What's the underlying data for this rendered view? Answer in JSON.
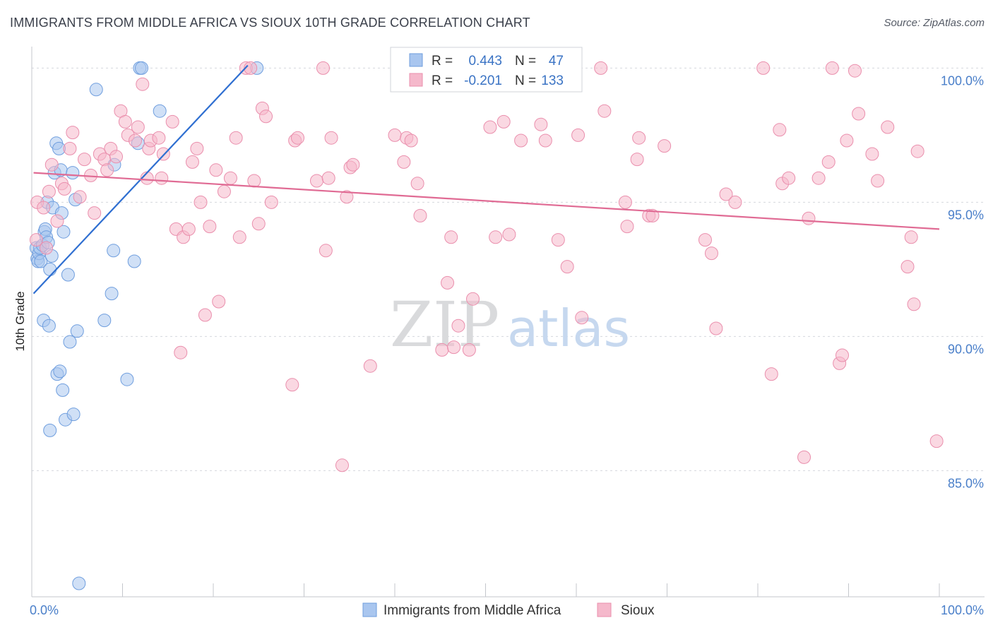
{
  "title": "IMMIGRANTS FROM MIDDLE AFRICA VS SIOUX 10TH GRADE CORRELATION CHART",
  "source": "Source: ZipAtlas.com",
  "watermark": {
    "zip": "ZIP",
    "atlas": "atlas"
  },
  "chart_data": {
    "type": "scatter",
    "title": "IMMIGRANTS FROM MIDDLE AFRICA VS SIOUX 10TH GRADE CORRELATION CHART",
    "xlabel": "",
    "ylabel": "10th Grade",
    "xlim": [
      0,
      100
    ],
    "ylim": [
      80.3,
      100.8
    ],
    "x_tick_labels": [
      {
        "value": 0,
        "label": "0.0%"
      },
      {
        "value": 100,
        "label": "100.0%"
      }
    ],
    "y_ticks": [
      {
        "value": 100,
        "label": "100.0%"
      },
      {
        "value": 95,
        "label": "95.0%"
      },
      {
        "value": 90,
        "label": "90.0%"
      },
      {
        "value": 85,
        "label": "85.0%"
      }
    ],
    "x_minor_ticks": [
      10,
      20,
      30,
      40,
      50,
      60,
      70,
      80,
      90,
      100
    ],
    "legend_box": [
      {
        "series": "Immigrants from Middle Africa",
        "r_label": "R =",
        "r_value": "0.443",
        "n_label": "N =",
        "n_value": "47",
        "color": "#a9c6ef"
      },
      {
        "series": "Sioux",
        "r_label": "R =",
        "r_value": "-0.201",
        "n_label": "N =",
        "n_value": "133",
        "color": "#f5b8cb"
      }
    ],
    "series": [
      {
        "name": "Immigrants from Middle Africa",
        "fill": "#a9c6ef",
        "stroke": "#6f9ede",
        "trend": {
          "x": [
            0.2,
            23.8
          ],
          "y": [
            91.6,
            100.1
          ],
          "color": "#2f6fd1"
        },
        "points": [
          [
            0.5,
            93.3
          ],
          [
            0.6,
            92.9
          ],
          [
            0.7,
            92.8
          ],
          [
            0.8,
            93.1
          ],
          [
            0.9,
            93.3
          ],
          [
            1.0,
            92.8
          ],
          [
            1.2,
            93.4
          ],
          [
            1.4,
            93.9
          ],
          [
            1.5,
            94.0
          ],
          [
            1.6,
            93.7
          ],
          [
            1.7,
            95.0
          ],
          [
            1.8,
            93.5
          ],
          [
            2.0,
            92.5
          ],
          [
            2.2,
            93.0
          ],
          [
            2.3,
            94.8
          ],
          [
            2.5,
            96.1
          ],
          [
            2.7,
            97.2
          ],
          [
            3.0,
            97.0
          ],
          [
            3.2,
            96.2
          ],
          [
            3.3,
            94.6
          ],
          [
            3.5,
            93.9
          ],
          [
            4.0,
            92.3
          ],
          [
            4.5,
            96.1
          ],
          [
            4.8,
            95.1
          ],
          [
            1.3,
            90.6
          ],
          [
            1.9,
            90.4
          ],
          [
            2.8,
            88.6
          ],
          [
            3.1,
            88.7
          ],
          [
            3.4,
            88.0
          ],
          [
            3.7,
            86.9
          ],
          [
            4.2,
            89.8
          ],
          [
            4.6,
            87.1
          ],
          [
            2.0,
            86.5
          ],
          [
            5.0,
            90.2
          ],
          [
            5.2,
            80.8
          ],
          [
            7.1,
            99.2
          ],
          [
            8.0,
            90.6
          ],
          [
            8.8,
            91.6
          ],
          [
            9.0,
            93.2
          ],
          [
            9.1,
            96.4
          ],
          [
            11.3,
            92.8
          ],
          [
            11.7,
            97.2
          ],
          [
            11.9,
            100.0
          ],
          [
            12.1,
            100.0
          ],
          [
            14.1,
            98.4
          ],
          [
            24.8,
            100.0
          ],
          [
            10.5,
            88.4
          ]
        ]
      },
      {
        "name": "Sioux",
        "fill": "#f5b8cb",
        "stroke": "#ea8fad",
        "trend": {
          "x": [
            0.2,
            100
          ],
          "y": [
            96.1,
            94.0
          ],
          "color": "#e06b94"
        },
        "points": [
          [
            0.5,
            93.6
          ],
          [
            0.6,
            95.0
          ],
          [
            1.3,
            94.8
          ],
          [
            1.6,
            93.3
          ],
          [
            1.9,
            95.4
          ],
          [
            2.2,
            96.4
          ],
          [
            2.8,
            94.3
          ],
          [
            3.3,
            95.7
          ],
          [
            3.6,
            95.5
          ],
          [
            4.2,
            97.0
          ],
          [
            4.5,
            97.6
          ],
          [
            5.3,
            95.2
          ],
          [
            5.8,
            96.6
          ],
          [
            6.5,
            96.0
          ],
          [
            6.9,
            94.6
          ],
          [
            7.5,
            96.8
          ],
          [
            8.0,
            96.6
          ],
          [
            8.3,
            96.2
          ],
          [
            8.7,
            97.0
          ],
          [
            9.3,
            96.7
          ],
          [
            9.8,
            98.4
          ],
          [
            10.3,
            98.0
          ],
          [
            10.6,
            97.5
          ],
          [
            11.4,
            97.3
          ],
          [
            11.7,
            97.8
          ],
          [
            12.2,
            99.4
          ],
          [
            12.7,
            95.9
          ],
          [
            12.9,
            97.0
          ],
          [
            13.1,
            97.3
          ],
          [
            14.0,
            97.4
          ],
          [
            14.3,
            95.9
          ],
          [
            14.5,
            96.8
          ],
          [
            15.5,
            98.0
          ],
          [
            15.9,
            94.0
          ],
          [
            16.4,
            89.4
          ],
          [
            16.7,
            93.7
          ],
          [
            17.3,
            94.0
          ],
          [
            17.7,
            96.5
          ],
          [
            18.2,
            97.0
          ],
          [
            18.6,
            95.0
          ],
          [
            19.1,
            90.8
          ],
          [
            19.6,
            94.1
          ],
          [
            20.3,
            96.2
          ],
          [
            20.6,
            91.3
          ],
          [
            21.2,
            95.4
          ],
          [
            21.9,
            95.9
          ],
          [
            22.5,
            97.4
          ],
          [
            22.9,
            93.7
          ],
          [
            23.6,
            100.0
          ],
          [
            24.1,
            100.0
          ],
          [
            24.5,
            95.8
          ],
          [
            25.0,
            94.2
          ],
          [
            25.4,
            98.5
          ],
          [
            25.8,
            98.2
          ],
          [
            26.4,
            95.0
          ],
          [
            28.7,
            88.2
          ],
          [
            29.0,
            97.3
          ],
          [
            29.3,
            97.4
          ],
          [
            31.4,
            95.8
          ],
          [
            32.1,
            100.0
          ],
          [
            32.4,
            93.2
          ],
          [
            32.7,
            95.9
          ],
          [
            33.0,
            97.4
          ],
          [
            34.2,
            85.2
          ],
          [
            34.7,
            95.2
          ],
          [
            35.1,
            96.3
          ],
          [
            35.4,
            96.4
          ],
          [
            37.3,
            88.9
          ],
          [
            40.0,
            97.5
          ],
          [
            41.0,
            96.5
          ],
          [
            41.3,
            97.4
          ],
          [
            41.8,
            97.3
          ],
          [
            42.5,
            95.7
          ],
          [
            42.8,
            94.5
          ],
          [
            44.0,
            100.0
          ],
          [
            45.2,
            89.5
          ],
          [
            45.8,
            92.0
          ],
          [
            46.2,
            93.7
          ],
          [
            46.5,
            89.6
          ],
          [
            47.0,
            90.4
          ],
          [
            47.5,
            100.0
          ],
          [
            48.2,
            89.5
          ],
          [
            48.6,
            91.4
          ],
          [
            50.5,
            97.8
          ],
          [
            51.1,
            93.7
          ],
          [
            52.0,
            98.0
          ],
          [
            52.6,
            93.8
          ],
          [
            53.9,
            97.3
          ],
          [
            54.7,
            100.0
          ],
          [
            56.1,
            97.9
          ],
          [
            56.6,
            97.3
          ],
          [
            57.9,
            100.0
          ],
          [
            58.0,
            93.6
          ],
          [
            59.0,
            92.6
          ],
          [
            60.2,
            97.5
          ],
          [
            60.6,
            90.7
          ],
          [
            62.7,
            100.0
          ],
          [
            63.1,
            98.4
          ],
          [
            65.4,
            95.0
          ],
          [
            65.6,
            94.1
          ],
          [
            66.7,
            96.6
          ],
          [
            66.9,
            97.4
          ],
          [
            68.0,
            94.5
          ],
          [
            68.4,
            94.5
          ],
          [
            69.7,
            97.1
          ],
          [
            74.2,
            93.6
          ],
          [
            74.9,
            93.1
          ],
          [
            75.4,
            90.3
          ],
          [
            76.5,
            95.3
          ],
          [
            77.5,
            95.0
          ],
          [
            80.6,
            100.0
          ],
          [
            81.5,
            88.6
          ],
          [
            82.4,
            97.7
          ],
          [
            82.7,
            95.7
          ],
          [
            83.4,
            95.9
          ],
          [
            85.1,
            85.5
          ],
          [
            85.6,
            94.4
          ],
          [
            86.7,
            95.9
          ],
          [
            87.8,
            96.5
          ],
          [
            88.2,
            100.0
          ],
          [
            89.0,
            89.0
          ],
          [
            89.3,
            89.3
          ],
          [
            89.8,
            97.3
          ],
          [
            90.7,
            99.9
          ],
          [
            91.1,
            98.3
          ],
          [
            92.6,
            96.8
          ],
          [
            93.2,
            95.8
          ],
          [
            94.3,
            97.8
          ],
          [
            96.5,
            92.6
          ],
          [
            96.9,
            93.7
          ],
          [
            97.2,
            91.2
          ],
          [
            97.6,
            96.9
          ],
          [
            99.7,
            86.1
          ]
        ]
      }
    ]
  }
}
